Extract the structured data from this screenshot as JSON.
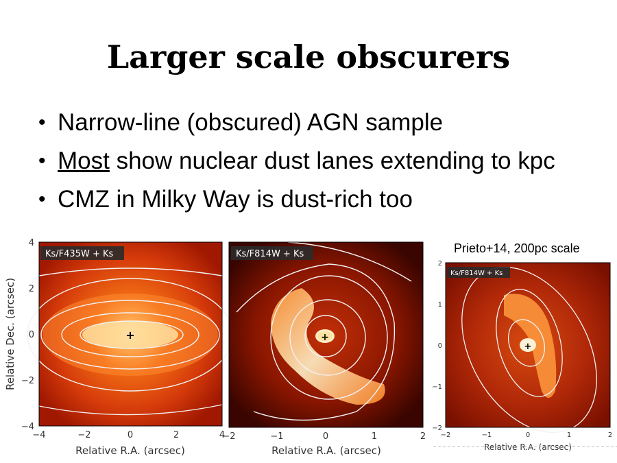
{
  "slide": {
    "title": "Larger scale obscurers",
    "bullets": [
      {
        "pre": "",
        "emph": "",
        "text": "Narrow-line (obscured) AGN sample"
      },
      {
        "pre": "",
        "emph": "Most",
        "text": " show nuclear dust lanes extending to kpc"
      },
      {
        "pre": "",
        "emph": "",
        "text": "CMZ in Milky Way is dust-rich too"
      }
    ],
    "caption": "Prieto+14, 200pc scale"
  },
  "panels": {
    "p1": {
      "label": "Ks/F435W + Ks",
      "xticks": [
        "−4",
        "−2",
        "0",
        "2",
        "4"
      ],
      "yticks": [
        "4",
        "2",
        "0",
        "−2",
        "−4"
      ],
      "xlabel": "Relative R.A. (arcsec)",
      "ylabel": "Relative Dec. (arcsec)"
    },
    "p2": {
      "label": "Ks/F814W + Ks",
      "xticks": [
        "−2",
        "−1",
        "0",
        "1",
        "2"
      ],
      "xlabel": "Relative R.A. (arcsec)"
    },
    "p3": {
      "label": "Ks/F814W + Ks",
      "xticks": [
        "−2",
        "−1",
        "0",
        "1",
        "2"
      ],
      "yticks": [
        "2",
        "1",
        "0",
        "−1",
        "−2"
      ],
      "xlabel": "Relative R.A. (arcsec)"
    }
  },
  "colors": {
    "dark": "#7a0a00",
    "mid": "#d8400a",
    "bright": "#ffd27a",
    "contour": "#f2f2f2"
  }
}
